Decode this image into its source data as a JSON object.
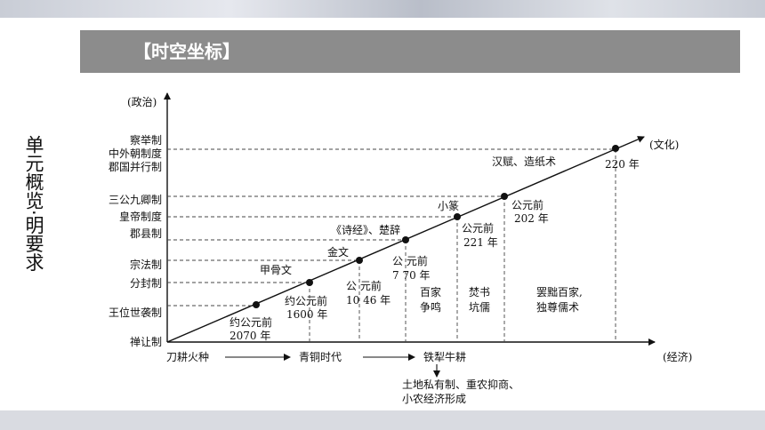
{
  "section_title": "【时空坐标】",
  "side_title": "单元概览·明要求",
  "diagram": {
    "y_axis_label": "(政治)",
    "x_axis_label": "(经济)",
    "end_label": "(文化)",
    "y_labels": {
      "l1": "察举制",
      "l2": "中外朝制度",
      "l3": "郡国并行制",
      "l4": "三公九卿制",
      "l5": "皇帝制度",
      "l6": "郡县制",
      "l7": "宗法制",
      "l8": "分封制",
      "l9": "王位世袭制",
      "l10": "禅让制"
    },
    "points": {
      "p1_date": "约公元前",
      "p1_year": "2070 年",
      "p2_culture": "甲骨文",
      "p2_date": "约公元前",
      "p2_year": "1600 年",
      "p3_culture": "金文",
      "p3_date": "公 元前",
      "p3_year": "10 46 年",
      "p4_culture": "《诗经》、楚辞",
      "p4_date": "公 元前",
      "p4_year": "7 70 年",
      "p5_culture": "小篆",
      "p5_date": "公元前",
      "p5_year": "221 年",
      "p6_date": "公元前",
      "p6_year": "202 年",
      "p7_culture": "汉赋、造纸术",
      "p7_year": "220 年"
    },
    "notes": {
      "n1a": "百家",
      "n1b": "争鸣",
      "n2a": "焚书",
      "n2b": "坑儒",
      "n3a": "罢黜百家,",
      "n3b": "独尊儒术"
    },
    "economy": {
      "e1": "刀耕火种",
      "e2": "青铜时代",
      "e3": "铁犁牛耕",
      "e4a": "土地私有制、重农抑商、",
      "e4b": "小农经济形成"
    }
  }
}
